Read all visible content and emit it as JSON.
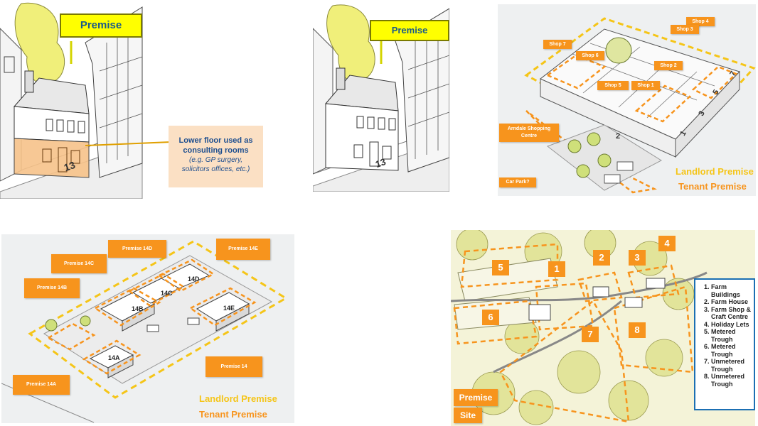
{
  "panel_a": {
    "premise_label": "Premise",
    "house_number": "13",
    "callout_line1": "Lower floor used as",
    "callout_line2": "consulting rooms",
    "callout_line3": "(e.g. GP surgery,",
    "callout_line4": "solicitors offices, etc.)"
  },
  "panel_b": {
    "premise_label": "Premise",
    "house_number": "13"
  },
  "panel_c": {
    "shops": [
      "Shop 4",
      "Shop 7",
      "Shop 6",
      "Shop 3",
      "Shop 2",
      "Shop 5",
      "Shop 1"
    ],
    "centre_label": "Arndale Shopping Centre",
    "car_park_label": "Car Park?",
    "entrance_numbers": [
      "1",
      "2",
      "3",
      "5",
      "7"
    ],
    "landlord_label": "Landlord Premise",
    "tenant_label": "Tenant Premise"
  },
  "panel_d": {
    "tags": [
      "Premise 14D",
      "Premise 14E",
      "Premise 14C",
      "Premise 14B",
      "Premise 14",
      "Premise 14A"
    ],
    "building_labels": [
      "14B",
      "14C",
      "14D",
      "14E",
      "14A"
    ],
    "landlord_label": "Landlord Premise",
    "tenant_label": "Tenant Premise"
  },
  "panel_e": {
    "numbers": [
      "1",
      "2",
      "3",
      "4",
      "5",
      "6",
      "7",
      "8"
    ],
    "legend": [
      "Farm Buildings",
      "Farm House",
      "Farm Shop & Craft Centre",
      "Holiday Lets",
      "Metered Trough",
      "Metered Trough",
      "Unmetered Trough",
      "Unmetered Trough"
    ],
    "premise_label": "Premise",
    "site_label": "Site"
  },
  "colors": {
    "orange": "#f7941d",
    "yellow": "#ffff00",
    "landlord_yellow": "#f5c518",
    "tenant_orange": "#f7941d",
    "legend_border": "#1b6fb3"
  }
}
